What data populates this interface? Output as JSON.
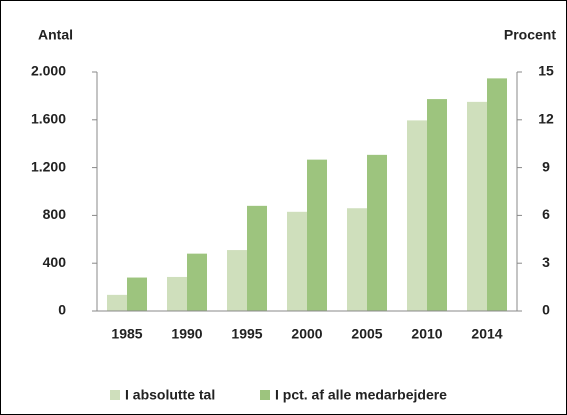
{
  "chart_data": {
    "type": "bar",
    "y_label": "Antal",
    "y2_label": "Procent",
    "categories": [
      "1985",
      "1990",
      "1995",
      "2000",
      "2005",
      "2010",
      "2014"
    ],
    "series": [
      {
        "name": "I absolutte tal",
        "color": "#cfdfbc",
        "values": [
          135,
          285,
          510,
          830,
          860,
          1595,
          1750
        ]
      },
      {
        "name": "I pct. af alle medarbejdere",
        "color": "#9dc47e",
        "axis": "y2",
        "values": [
          2.1,
          3.6,
          6.6,
          9.5,
          9.8,
          13.3,
          14.6
        ]
      }
    ],
    "ylim": [
      0,
      2000
    ],
    "yticks": [
      0,
      400,
      800,
      {
        "value": 1200,
        "label": "1.200"
      },
      {
        "value": 1600,
        "label": "1.600"
      },
      {
        "value": 2000,
        "label": "2.000"
      }
    ],
    "y2lim": [
      0,
      15
    ],
    "y2ticks": [
      0,
      3,
      6,
      9,
      12,
      15
    ],
    "legend": "bottom"
  }
}
